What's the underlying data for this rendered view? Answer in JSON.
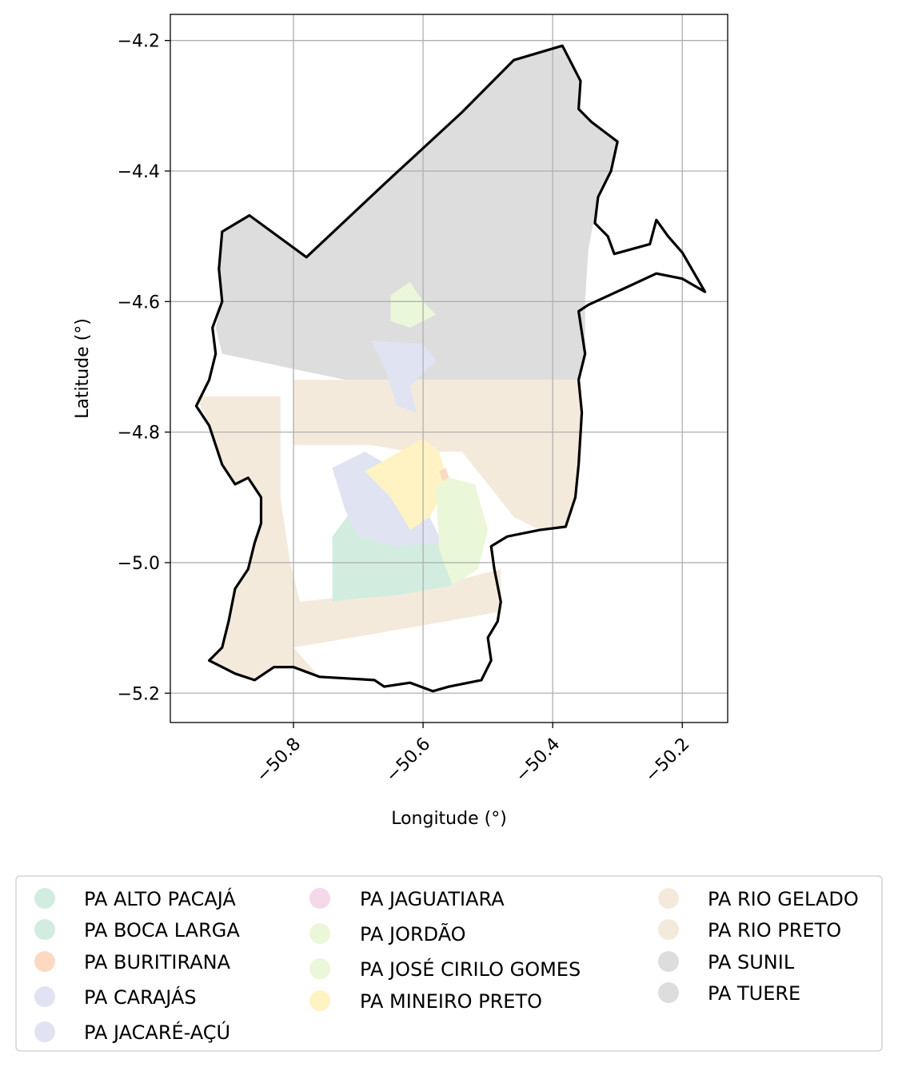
{
  "chart_data": {
    "type": "map",
    "xlabel": "Longitude (°)",
    "ylabel": "Latitude (°)",
    "xlim": [
      -50.99,
      -50.13
    ],
    "ylim": [
      -5.245,
      -4.16
    ],
    "x_ticks": [
      {
        "value": -50.8,
        "label": "−50.8"
      },
      {
        "value": -50.6,
        "label": "−50.6"
      },
      {
        "value": -50.4,
        "label": "−50.4"
      },
      {
        "value": -50.2,
        "label": "−50.2"
      }
    ],
    "y_ticks": [
      {
        "value": -4.2,
        "label": "−4.2"
      },
      {
        "value": -4.4,
        "label": "−4.4"
      },
      {
        "value": -4.6,
        "label": "−4.6"
      },
      {
        "value": -4.8,
        "label": "−4.8"
      },
      {
        "value": -5.0,
        "label": "−5.0"
      },
      {
        "value": -5.2,
        "label": "−5.2"
      }
    ],
    "grid": true,
    "legend_position": "bottom",
    "legend": [
      {
        "label": "PA ALTO PACAJÁ",
        "color": "#d2ede0"
      },
      {
        "label": "PA BOCA LARGA",
        "color": "#d2ede0"
      },
      {
        "label": "PA BURITIRANA",
        "color": "#fdd9c2"
      },
      {
        "label": "PA CARAJÁS",
        "color": "#dfe3f2"
      },
      {
        "label": "PA JACARÉ-AÇÚ",
        "color": "#dfe3f2"
      },
      {
        "label": "PA JAGUATIARA",
        "color": "#f5d8ea"
      },
      {
        "label": "PA JORDÃO",
        "color": "#eaf7d8"
      },
      {
        "label": "PA JOSÉ CIRILO GOMES",
        "color": "#eaf7d8"
      },
      {
        "label": "PA MINEIRO PRETO",
        "color": "#fff3c4"
      },
      {
        "label": "PA RIO GELADO",
        "color": "#f4eadb"
      },
      {
        "label": "PA RIO PRETO",
        "color": "#f4eadb"
      },
      {
        "label": "PA SUNIL",
        "color": "#dddddd"
      },
      {
        "label": "PA TUERE",
        "color": "#dddddd"
      }
    ],
    "boundary": [
      [
        -50.46,
        -4.23
      ],
      [
        -50.385,
        -4.208
      ],
      [
        -50.357,
        -4.262
      ],
      [
        -50.36,
        -4.305
      ],
      [
        -50.34,
        -4.325
      ],
      [
        -50.32,
        -4.34
      ],
      [
        -50.3,
        -4.355
      ],
      [
        -50.31,
        -4.4
      ],
      [
        -50.33,
        -4.44
      ],
      [
        -50.335,
        -4.48
      ],
      [
        -50.315,
        -4.5
      ],
      [
        -50.305,
        -4.527
      ],
      [
        -50.25,
        -4.512
      ],
      [
        -50.24,
        -4.475
      ],
      [
        -50.222,
        -4.5
      ],
      [
        -50.2,
        -4.525
      ],
      [
        -50.165,
        -4.585
      ],
      [
        -50.2,
        -4.565
      ],
      [
        -50.24,
        -4.557
      ],
      [
        -50.29,
        -4.58
      ],
      [
        -50.345,
        -4.605
      ],
      [
        -50.36,
        -4.615
      ],
      [
        -50.35,
        -4.68
      ],
      [
        -50.36,
        -4.72
      ],
      [
        -50.355,
        -4.77
      ],
      [
        -50.36,
        -4.85
      ],
      [
        -50.365,
        -4.9
      ],
      [
        -50.38,
        -4.945
      ],
      [
        -50.42,
        -4.95
      ],
      [
        -50.47,
        -4.96
      ],
      [
        -50.495,
        -4.975
      ],
      [
        -50.49,
        -5.01
      ],
      [
        -50.48,
        -5.06
      ],
      [
        -50.485,
        -5.09
      ],
      [
        -50.5,
        -5.115
      ],
      [
        -50.495,
        -5.15
      ],
      [
        -50.51,
        -5.18
      ],
      [
        -50.56,
        -5.19
      ],
      [
        -50.585,
        -5.197
      ],
      [
        -50.62,
        -5.184
      ],
      [
        -50.66,
        -5.19
      ],
      [
        -50.675,
        -5.18
      ],
      [
        -50.76,
        -5.175
      ],
      [
        -50.8,
        -5.16
      ],
      [
        -50.83,
        -5.16
      ],
      [
        -50.86,
        -5.18
      ],
      [
        -50.89,
        -5.17
      ],
      [
        -50.91,
        -5.16
      ],
      [
        -50.93,
        -5.15
      ],
      [
        -50.91,
        -5.13
      ],
      [
        -50.9,
        -5.09
      ],
      [
        -50.89,
        -5.04
      ],
      [
        -50.87,
        -5.01
      ],
      [
        -50.86,
        -4.97
      ],
      [
        -50.85,
        -4.94
      ],
      [
        -50.85,
        -4.9
      ],
      [
        -50.87,
        -4.87
      ],
      [
        -50.89,
        -4.88
      ],
      [
        -50.91,
        -4.85
      ],
      [
        -50.92,
        -4.82
      ],
      [
        -50.93,
        -4.79
      ],
      [
        -50.95,
        -4.76
      ],
      [
        -50.93,
        -4.72
      ],
      [
        -50.92,
        -4.68
      ],
      [
        -50.925,
        -4.64
      ],
      [
        -50.91,
        -4.6
      ],
      [
        -50.915,
        -4.55
      ],
      [
        -50.91,
        -4.493
      ],
      [
        -50.868,
        -4.468
      ],
      [
        -50.78,
        -4.532
      ],
      [
        -50.66,
        -4.42
      ],
      [
        -50.54,
        -4.31
      ],
      [
        -50.46,
        -4.23
      ]
    ],
    "regions": [
      {
        "legend": "PA SUNIL",
        "color": "#dddddd",
        "polygon": [
          [
            -50.46,
            -4.23
          ],
          [
            -50.385,
            -4.208
          ],
          [
            -50.357,
            -4.262
          ],
          [
            -50.36,
            -4.305
          ],
          [
            -50.34,
            -4.325
          ],
          [
            -50.32,
            -4.34
          ],
          [
            -50.3,
            -4.355
          ],
          [
            -50.31,
            -4.4
          ],
          [
            -50.33,
            -4.44
          ],
          [
            -50.345,
            -4.52
          ],
          [
            -50.35,
            -4.6
          ],
          [
            -50.35,
            -4.68
          ],
          [
            -50.36,
            -4.72
          ],
          [
            -50.72,
            -4.72
          ],
          [
            -50.91,
            -4.68
          ],
          [
            -50.92,
            -4.64
          ],
          [
            -50.91,
            -4.6
          ],
          [
            -50.915,
            -4.55
          ],
          [
            -50.91,
            -4.493
          ],
          [
            -50.868,
            -4.468
          ],
          [
            -50.78,
            -4.532
          ],
          [
            -50.66,
            -4.42
          ],
          [
            -50.54,
            -4.31
          ]
        ]
      },
      {
        "legend": "PA RIO GELADO",
        "color": "#f4eadb",
        "polygon": [
          [
            -50.8,
            -4.72
          ],
          [
            -50.36,
            -4.72
          ],
          [
            -50.355,
            -4.77
          ],
          [
            -50.36,
            -4.85
          ],
          [
            -50.365,
            -4.9
          ],
          [
            -50.38,
            -4.945
          ],
          [
            -50.42,
            -4.95
          ],
          [
            -50.46,
            -4.93
          ],
          [
            -50.5,
            -4.88
          ],
          [
            -50.54,
            -4.83
          ],
          [
            -50.62,
            -4.83
          ],
          [
            -50.68,
            -4.82
          ],
          [
            -50.8,
            -4.82
          ]
        ]
      },
      {
        "legend": "PA RIO PRETO",
        "color": "#f4eadb",
        "polygon": [
          [
            -50.95,
            -4.745
          ],
          [
            -50.82,
            -4.745
          ],
          [
            -50.82,
            -4.9
          ],
          [
            -50.805,
            -5.0
          ],
          [
            -50.79,
            -5.06
          ],
          [
            -50.7,
            -5.05
          ],
          [
            -50.56,
            -5.03
          ],
          [
            -50.48,
            -5.01
          ],
          [
            -50.48,
            -5.075
          ],
          [
            -50.68,
            -5.11
          ],
          [
            -50.8,
            -5.13
          ],
          [
            -50.76,
            -5.175
          ],
          [
            -50.8,
            -5.16
          ],
          [
            -50.83,
            -5.16
          ],
          [
            -50.86,
            -5.18
          ],
          [
            -50.91,
            -5.16
          ],
          [
            -50.93,
            -5.15
          ],
          [
            -50.91,
            -5.13
          ],
          [
            -50.9,
            -5.09
          ],
          [
            -50.89,
            -5.04
          ],
          [
            -50.87,
            -5.01
          ],
          [
            -50.86,
            -4.97
          ],
          [
            -50.85,
            -4.94
          ],
          [
            -50.85,
            -4.9
          ],
          [
            -50.87,
            -4.87
          ],
          [
            -50.89,
            -4.88
          ],
          [
            -50.91,
            -4.85
          ],
          [
            -50.92,
            -4.82
          ],
          [
            -50.93,
            -4.79
          ]
        ]
      },
      {
        "legend": "PA ALTO PACAJÁ",
        "color": "#d2ede0",
        "polygon": [
          [
            -50.74,
            -4.96
          ],
          [
            -50.71,
            -4.92
          ],
          [
            -50.68,
            -4.95
          ],
          [
            -50.57,
            -4.97
          ],
          [
            -50.555,
            -5.035
          ],
          [
            -50.64,
            -5.05
          ],
          [
            -50.7,
            -5.055
          ],
          [
            -50.74,
            -5.06
          ]
        ]
      },
      {
        "legend": "PA JACARÉ-AÇÚ",
        "color": "#dfe3f2",
        "polygon": [
          [
            -50.74,
            -4.855
          ],
          [
            -50.69,
            -4.83
          ],
          [
            -50.62,
            -4.87
          ],
          [
            -50.59,
            -4.93
          ],
          [
            -50.57,
            -4.97
          ],
          [
            -50.64,
            -4.975
          ],
          [
            -50.7,
            -4.96
          ],
          [
            -50.72,
            -4.92
          ]
        ]
      },
      {
        "legend": "PA MINEIRO PRETO",
        "color": "#fff3c4",
        "polygon": [
          [
            -50.69,
            -4.86
          ],
          [
            -50.6,
            -4.81
          ],
          [
            -50.575,
            -4.83
          ],
          [
            -50.56,
            -4.88
          ],
          [
            -50.59,
            -4.93
          ],
          [
            -50.62,
            -4.95
          ],
          [
            -50.65,
            -4.9
          ]
        ]
      },
      {
        "legend": "PA JOSÉ CIRILO GOMES",
        "color": "#eaf7d8",
        "polygon": [
          [
            -50.58,
            -4.885
          ],
          [
            -50.56,
            -4.87
          ],
          [
            -50.52,
            -4.88
          ],
          [
            -50.5,
            -4.95
          ],
          [
            -50.515,
            -5.01
          ],
          [
            -50.555,
            -5.035
          ],
          [
            -50.575,
            -4.98
          ]
        ]
      },
      {
        "legend": "PA JORDÃO",
        "color": "#eaf7d8",
        "polygon": [
          [
            -50.65,
            -4.59
          ],
          [
            -50.62,
            -4.57
          ],
          [
            -50.6,
            -4.6
          ],
          [
            -50.58,
            -4.62
          ],
          [
            -50.62,
            -4.64
          ],
          [
            -50.65,
            -4.63
          ]
        ]
      },
      {
        "legend": "PA CARAJÁS",
        "color": "#dfe3f2",
        "polygon": [
          [
            -50.68,
            -4.66
          ],
          [
            -50.6,
            -4.665
          ],
          [
            -50.58,
            -4.69
          ],
          [
            -50.62,
            -4.73
          ],
          [
            -50.61,
            -4.77
          ],
          [
            -50.64,
            -4.76
          ],
          [
            -50.66,
            -4.7
          ]
        ]
      },
      {
        "legend": "PA BURITIRANA",
        "color": "#fdd9c2",
        "polygon": [
          [
            -50.575,
            -4.86
          ],
          [
            -50.565,
            -4.855
          ],
          [
            -50.56,
            -4.87
          ],
          [
            -50.57,
            -4.875
          ]
        ]
      }
    ]
  }
}
